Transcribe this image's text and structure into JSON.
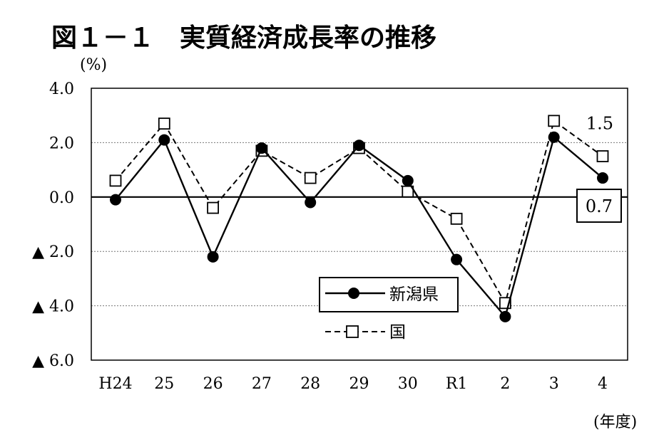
{
  "title": "図１－１　実質経済成長率の推移",
  "y_unit": "(%)",
  "x_unit": "(年度)",
  "chart_data": {
    "type": "line",
    "categories": [
      "H24",
      "25",
      "26",
      "27",
      "28",
      "29",
      "30",
      "R1",
      "2",
      "3",
      "4"
    ],
    "ylim": [
      -6.0,
      4.0
    ],
    "yticks": [
      4.0,
      2.0,
      0.0,
      -2.0,
      -4.0,
      -6.0
    ],
    "ytick_labels": [
      "4.0",
      "2.0",
      "0.0",
      "▲ 2.0",
      "▲ 4.0",
      "▲ 6.0"
    ],
    "grid": "horizontal-dotted",
    "legend_position": "lower-center",
    "series": [
      {
        "name": "新潟県",
        "style": "solid",
        "marker": "filled-circle",
        "color": "#000000",
        "values": [
          -0.1,
          2.1,
          -2.2,
          1.8,
          -0.2,
          1.9,
          0.6,
          -2.3,
          -4.4,
          2.2,
          0.7
        ]
      },
      {
        "name": "国",
        "style": "dashed",
        "marker": "open-square",
        "color": "#000000",
        "values": [
          0.6,
          2.7,
          -0.4,
          1.7,
          0.7,
          1.8,
          0.2,
          -0.8,
          -3.9,
          2.8,
          1.5
        ]
      }
    ],
    "annotations": [
      {
        "series": 1,
        "index": 10,
        "text": "1.5",
        "boxed": false
      },
      {
        "series": 0,
        "index": 10,
        "text": "0.7",
        "boxed": true
      }
    ]
  }
}
